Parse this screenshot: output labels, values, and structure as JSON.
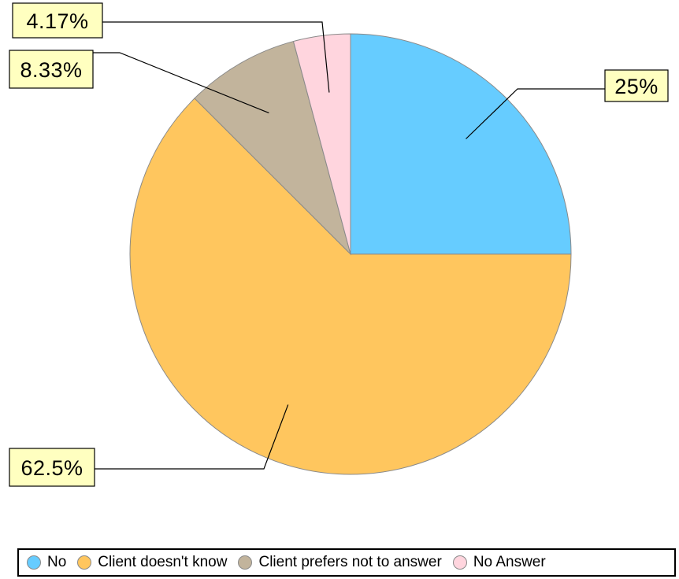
{
  "chart_data": {
    "type": "pie",
    "slices": [
      {
        "name": "No",
        "value": 25,
        "label": "25%",
        "color": "#66ccff"
      },
      {
        "name": "Client doesn't know",
        "value": 62.5,
        "label": "62.5%",
        "color": "#ffc65e"
      },
      {
        "name": "Client prefers not to answer",
        "value": 8.33,
        "label": "8.33%",
        "color": "#c2b49c"
      },
      {
        "name": "No Answer",
        "value": 4.17,
        "label": "4.17%",
        "color": "#ffd5de"
      }
    ],
    "start_angle": "12 o'clock",
    "direction": "clockwise",
    "legend": "bottom"
  }
}
